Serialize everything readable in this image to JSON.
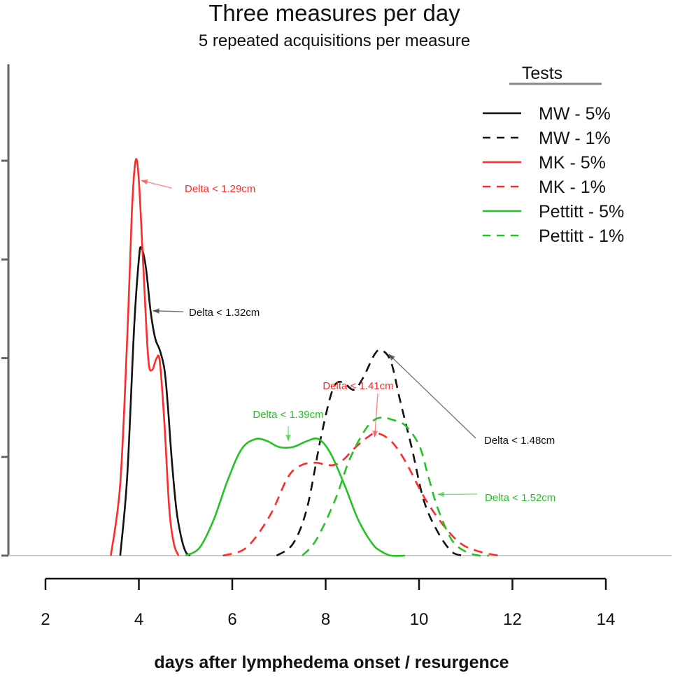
{
  "chart_data": {
    "type": "line",
    "title": "Three measures per day",
    "subtitle": "5 repeated acquisitions per measure",
    "xlabel": "days after lymphedema onset / resurgence",
    "ylabel": "",
    "xlim": [
      2,
      14
    ],
    "x_ticks": [
      "2",
      "4",
      "6",
      "8",
      "10",
      "12",
      "14"
    ],
    "ylim": [
      0,
      1
    ],
    "y_ticks": [
      0,
      0.25,
      0.5,
      0.75,
      1.0
    ],
    "y_tick_labels_visible": false,
    "grid": false,
    "legend": {
      "title": "Tests",
      "position": "top-right",
      "entries": [
        {
          "label": "MW - 5%",
          "color": "#111111",
          "style": "solid"
        },
        {
          "label": "MW - 1%",
          "color": "#111111",
          "style": "dashed"
        },
        {
          "label": "MK - 5%",
          "color": "#ff2a2a",
          "style": "solid"
        },
        {
          "label": "MK - 1%",
          "color": "#ff2a2a",
          "style": "dashed"
        },
        {
          "label": "Pettitt - 5%",
          "color": "#22c322",
          "style": "solid"
        },
        {
          "label": "Pettitt - 1%",
          "color": "#22c322",
          "style": "dashed"
        }
      ]
    },
    "series": [
      {
        "name": "MW - 5%",
        "color": "#111111",
        "dash": false,
        "x": [
          3.6,
          3.75,
          3.9,
          4.0,
          4.05,
          4.15,
          4.25,
          4.35,
          4.45,
          4.55,
          4.62,
          4.7,
          4.8,
          4.9,
          5.0,
          5.1
        ],
        "y": [
          0.0,
          0.2,
          0.58,
          0.75,
          0.78,
          0.73,
          0.62,
          0.55,
          0.52,
          0.47,
          0.38,
          0.25,
          0.12,
          0.05,
          0.01,
          0.0
        ]
      },
      {
        "name": "MW - 1%",
        "color": "#111111",
        "dash": true,
        "x": [
          6.95,
          7.3,
          7.6,
          7.9,
          8.15,
          8.35,
          8.6,
          8.8,
          9.05,
          9.2,
          9.4,
          9.6,
          9.85,
          10.1,
          10.4,
          10.7,
          10.95
        ],
        "y": [
          0.0,
          0.03,
          0.12,
          0.3,
          0.42,
          0.44,
          0.42,
          0.45,
          0.51,
          0.52,
          0.49,
          0.39,
          0.27,
          0.14,
          0.06,
          0.01,
          0.0
        ]
      },
      {
        "name": "MK - 5%",
        "color": "#ff2a2a",
        "dash": false,
        "x": [
          3.4,
          3.6,
          3.75,
          3.85,
          3.93,
          4.0,
          4.1,
          4.2,
          4.28,
          4.38,
          4.45,
          4.55,
          4.65,
          4.75,
          4.85
        ],
        "y": [
          0.0,
          0.18,
          0.55,
          0.87,
          1.0,
          0.95,
          0.72,
          0.5,
          0.47,
          0.5,
          0.49,
          0.33,
          0.12,
          0.03,
          0.0
        ]
      },
      {
        "name": "MK - 1%",
        "color": "#ff2a2a",
        "dash": true,
        "x": [
          5.8,
          6.3,
          6.8,
          7.2,
          7.5,
          7.8,
          8.0,
          8.2,
          8.4,
          8.6,
          8.9,
          9.1,
          9.4,
          9.7,
          10.1,
          10.5,
          10.9,
          11.3,
          11.7
        ],
        "y": [
          0.0,
          0.02,
          0.1,
          0.2,
          0.23,
          0.235,
          0.23,
          0.23,
          0.245,
          0.27,
          0.3,
          0.31,
          0.29,
          0.24,
          0.15,
          0.08,
          0.03,
          0.01,
          0.0
        ]
      },
      {
        "name": "Pettitt - 5%",
        "color": "#22c322",
        "dash": false,
        "x": [
          5.0,
          5.3,
          5.6,
          5.9,
          6.2,
          6.5,
          6.75,
          7.0,
          7.3,
          7.6,
          7.85,
          8.1,
          8.4,
          8.7,
          9.0,
          9.2,
          9.4,
          9.7
        ],
        "y": [
          0.0,
          0.02,
          0.09,
          0.19,
          0.27,
          0.295,
          0.29,
          0.275,
          0.275,
          0.29,
          0.295,
          0.26,
          0.18,
          0.09,
          0.03,
          0.01,
          0.0,
          0.0
        ]
      },
      {
        "name": "Pettitt - 1%",
        "color": "#22c322",
        "dash": true,
        "x": [
          7.5,
          7.8,
          8.2,
          8.5,
          8.8,
          9.0,
          9.2,
          9.4,
          9.7,
          10.0,
          10.2,
          10.4,
          10.7,
          11.0,
          11.3,
          11.5
        ],
        "y": [
          0.0,
          0.04,
          0.14,
          0.24,
          0.31,
          0.34,
          0.35,
          0.345,
          0.33,
          0.28,
          0.2,
          0.12,
          0.04,
          0.01,
          0.0,
          0.0
        ]
      }
    ],
    "annotations": [
      {
        "text": "Delta < 1.29cm",
        "color": "#ff2a2a",
        "arrow_to": [
          4.05,
          0.95
        ]
      },
      {
        "text": "Delta < 1.32cm",
        "color": "#111111",
        "arrow_to": [
          4.3,
          0.62
        ]
      },
      {
        "text": "Delta < 1.41cm",
        "color": "#ff2a2a",
        "arrow_to": [
          9.05,
          0.3
        ]
      },
      {
        "text": "Delta < 1.39cm",
        "color": "#22c322",
        "arrow_to": [
          7.2,
          0.29
        ]
      },
      {
        "text": "Delta < 1.48cm",
        "color": "#111111",
        "arrow_to": [
          9.35,
          0.51
        ]
      },
      {
        "text": "Delta < 1.52cm",
        "color": "#22c322",
        "arrow_to": [
          10.4,
          0.155
        ]
      }
    ]
  }
}
